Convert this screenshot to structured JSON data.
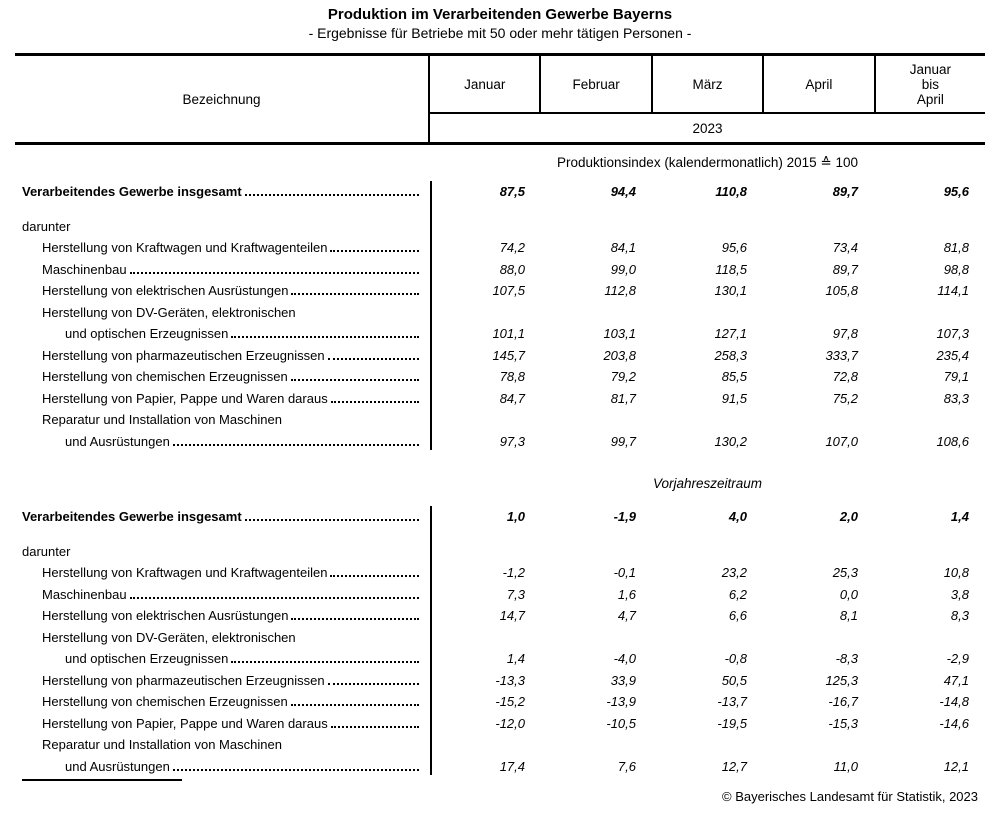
{
  "title": "Produktion im Verarbeitenden Gewerbe Bayerns",
  "subtitle": "- Ergebnisse für Betriebe mit 50 oder mehr tätigen Personen -",
  "table": {
    "desc_header": "Bezeichnung",
    "month_headers": [
      "Januar",
      "Februar",
      "März",
      "April",
      "Januar\nbis\nApril"
    ],
    "year": "2023",
    "sections": [
      {
        "heading": "Produktionsindex (kalendermonatlich) 2015 ≙ 100",
        "italic": false,
        "rows": [
          {
            "label": "Verarbeitendes Gewerbe insgesamt",
            "indent": 0,
            "bold": true,
            "dots": true,
            "spaced_after": true,
            "values": [
              "87,5",
              "94,4",
              "110,8",
              "89,7",
              "95,6"
            ]
          },
          {
            "label": "darunter",
            "indent": 0,
            "bold": false,
            "dots": false,
            "values": null
          },
          {
            "label": "Herstellung von Kraftwagen und Kraftwagenteilen",
            "indent": 1,
            "bold": false,
            "dots": true,
            "values": [
              "74,2",
              "84,1",
              "95,6",
              "73,4",
              "81,8"
            ]
          },
          {
            "label": "Maschinenbau",
            "indent": 1,
            "bold": false,
            "dots": true,
            "values": [
              "88,0",
              "99,0",
              "118,5",
              "89,7",
              "98,8"
            ]
          },
          {
            "label": "Herstellung von elektrischen Ausrüstungen",
            "indent": 1,
            "bold": false,
            "dots": true,
            "values": [
              "107,5",
              "112,8",
              "130,1",
              "105,8",
              "114,1"
            ]
          },
          {
            "label": "Herstellung von DV-Geräten, elektronischen",
            "indent": 1,
            "bold": false,
            "dots": false,
            "values": null
          },
          {
            "label": "und optischen Erzeugnissen",
            "indent": 2,
            "bold": false,
            "dots": true,
            "values": [
              "101,1",
              "103,1",
              "127,1",
              "97,8",
              "107,3"
            ]
          },
          {
            "label": "Herstellung von pharmazeutischen Erzeugnissen",
            "indent": 1,
            "bold": false,
            "dots": true,
            "values": [
              "145,7",
              "203,8",
              "258,3",
              "333,7",
              "235,4"
            ]
          },
          {
            "label": "Herstellung von chemischen Erzeugnissen",
            "indent": 1,
            "bold": false,
            "dots": true,
            "values": [
              "78,8",
              "79,2",
              "85,5",
              "72,8",
              "79,1"
            ]
          },
          {
            "label": "Herstellung von Papier, Pappe und Waren daraus",
            "indent": 1,
            "bold": false,
            "dots": true,
            "values": [
              "84,7",
              "81,7",
              "91,5",
              "75,2",
              "83,3"
            ]
          },
          {
            "label": "Reparatur und Installation von Maschinen",
            "indent": 1,
            "bold": false,
            "dots": false,
            "values": null
          },
          {
            "label": "und Ausrüstungen",
            "indent": 2,
            "bold": false,
            "dots": true,
            "values": [
              "97,3",
              "99,7",
              "130,2",
              "107,0",
              "108,6"
            ]
          }
        ]
      },
      {
        "heading": "Vorjahreszeitraum",
        "italic": true,
        "rows": [
          {
            "label": "Verarbeitendes Gewerbe insgesamt",
            "indent": 0,
            "bold": true,
            "dots": true,
            "spaced_after": true,
            "values": [
              "1,0",
              "-1,9",
              "4,0",
              "2,0",
              "1,4"
            ]
          },
          {
            "label": "darunter",
            "indent": 0,
            "bold": false,
            "dots": false,
            "values": null
          },
          {
            "label": "Herstellung von Kraftwagen und Kraftwagenteilen",
            "indent": 1,
            "bold": false,
            "dots": true,
            "values": [
              "-1,2",
              "-0,1",
              "23,2",
              "25,3",
              "10,8"
            ]
          },
          {
            "label": "Maschinenbau",
            "indent": 1,
            "bold": false,
            "dots": true,
            "values": [
              "7,3",
              "1,6",
              "6,2",
              "0,0",
              "3,8"
            ]
          },
          {
            "label": "Herstellung von elektrischen Ausrüstungen",
            "indent": 1,
            "bold": false,
            "dots": true,
            "values": [
              "14,7",
              "4,7",
              "6,6",
              "8,1",
              "8,3"
            ]
          },
          {
            "label": "Herstellung von DV-Geräten, elektronischen",
            "indent": 1,
            "bold": false,
            "dots": false,
            "values": null
          },
          {
            "label": "und optischen Erzeugnissen",
            "indent": 2,
            "bold": false,
            "dots": true,
            "values": [
              "1,4",
              "-4,0",
              "-0,8",
              "-8,3",
              "-2,9"
            ]
          },
          {
            "label": "Herstellung von pharmazeutischen Erzeugnissen",
            "indent": 1,
            "bold": false,
            "dots": true,
            "values": [
              "-13,3",
              "33,9",
              "50,5",
              "125,3",
              "47,1"
            ]
          },
          {
            "label": "Herstellung von chemischen Erzeugnissen",
            "indent": 1,
            "bold": false,
            "dots": true,
            "values": [
              "-15,2",
              "-13,9",
              "-13,7",
              "-16,7",
              "-14,8"
            ]
          },
          {
            "label": "Herstellung von Papier, Pappe und Waren daraus",
            "indent": 1,
            "bold": false,
            "dots": true,
            "values": [
              "-12,0",
              "-10,5",
              "-19,5",
              "-15,3",
              "-14,6"
            ]
          },
          {
            "label": "Reparatur und Installation von Maschinen",
            "indent": 1,
            "bold": false,
            "dots": false,
            "values": null
          },
          {
            "label": "und Ausrüstungen",
            "indent": 2,
            "bold": false,
            "dots": true,
            "values": [
              "17,4",
              "7,6",
              "12,7",
              "11,0",
              "12,1"
            ]
          }
        ]
      }
    ]
  },
  "footer": "© Bayerisches Landesamt für Statistik, 2023"
}
